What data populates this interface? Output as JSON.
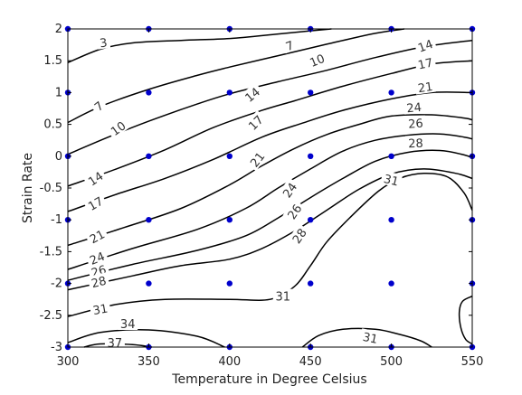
{
  "chart_data": {
    "type": "contour",
    "title": "",
    "xlabel": "Temperature in Degree Celsius",
    "ylabel": "Strain Rate",
    "xlim": [
      300,
      550
    ],
    "ylim": [
      -3,
      2
    ],
    "x_ticks": [
      "300",
      "350",
      "400",
      "450",
      "500",
      "550"
    ],
    "y_ticks": [
      "2",
      "1.5",
      "1",
      "0.5",
      "0",
      "-0.5",
      "-1",
      "-1.5",
      "-2",
      "-2.5",
      "-3"
    ],
    "grid": false,
    "points_x": [
      300,
      350,
      400,
      450,
      500,
      550
    ],
    "points_y": [
      2,
      1,
      0,
      -1,
      -2,
      -3
    ],
    "point_color": "#0000cc",
    "line_color": "#000000",
    "contour_lines": [
      {
        "level": "3",
        "points": [
          [
            300,
            1.47
          ],
          [
            320,
            1.68
          ],
          [
            340,
            1.78
          ],
          [
            370,
            1.82
          ],
          [
            400,
            1.85
          ],
          [
            430,
            1.92
          ],
          [
            450,
            1.97
          ],
          [
            463,
            2.0
          ]
        ]
      },
      {
        "level": "7",
        "points": [
          [
            300,
            0.53
          ],
          [
            320,
            0.78
          ],
          [
            350,
            1.05
          ],
          [
            380,
            1.27
          ],
          [
            400,
            1.4
          ],
          [
            430,
            1.58
          ],
          [
            460,
            1.76
          ],
          [
            490,
            1.93
          ],
          [
            508,
            2.0
          ]
        ]
      },
      {
        "level": "10",
        "points": [
          [
            300,
            0.03
          ],
          [
            325,
            0.3
          ],
          [
            350,
            0.55
          ],
          [
            380,
            0.82
          ],
          [
            400,
            0.98
          ],
          [
            430,
            1.17
          ],
          [
            460,
            1.35
          ],
          [
            490,
            1.55
          ],
          [
            520,
            1.72
          ],
          [
            550,
            1.82
          ]
        ]
      },
      {
        "level": "14",
        "points": [
          [
            300,
            -0.47
          ],
          [
            330,
            -0.2
          ],
          [
            360,
            0.1
          ],
          [
            390,
            0.45
          ],
          [
            420,
            0.72
          ],
          [
            440,
            0.87
          ],
          [
            470,
            1.1
          ],
          [
            500,
            1.3
          ],
          [
            525,
            1.45
          ],
          [
            550,
            1.5
          ]
        ]
      },
      {
        "level": "17",
        "points": [
          [
            300,
            -0.87
          ],
          [
            330,
            -0.6
          ],
          [
            360,
            -0.35
          ],
          [
            390,
            -0.05
          ],
          [
            420,
            0.3
          ],
          [
            445,
            0.52
          ],
          [
            470,
            0.72
          ],
          [
            500,
            0.9
          ],
          [
            525,
            1.0
          ],
          [
            550,
            1.0
          ]
        ]
      },
      {
        "level": "21",
        "points": [
          [
            300,
            -1.4
          ],
          [
            335,
            -1.12
          ],
          [
            370,
            -0.82
          ],
          [
            400,
            -0.45
          ],
          [
            420,
            -0.15
          ],
          [
            440,
            0.12
          ],
          [
            460,
            0.34
          ],
          [
            480,
            0.5
          ],
          [
            500,
            0.63
          ],
          [
            525,
            0.65
          ],
          [
            545,
            0.6
          ],
          [
            550,
            0.57
          ]
        ]
      },
      {
        "level": "24",
        "points": [
          [
            300,
            -1.78
          ],
          [
            340,
            -1.45
          ],
          [
            380,
            -1.15
          ],
          [
            410,
            -0.82
          ],
          [
            430,
            -0.5
          ],
          [
            450,
            -0.2
          ],
          [
            470,
            0.08
          ],
          [
            490,
            0.25
          ],
          [
            510,
            0.33
          ],
          [
            530,
            0.35
          ],
          [
            545,
            0.3
          ],
          [
            550,
            0.27
          ]
        ]
      },
      {
        "level": "26",
        "points": [
          [
            300,
            -1.95
          ],
          [
            340,
            -1.7
          ],
          [
            380,
            -1.48
          ],
          [
            410,
            -1.25
          ],
          [
            430,
            -0.97
          ],
          [
            450,
            -0.65
          ],
          [
            470,
            -0.35
          ],
          [
            490,
            -0.08
          ],
          [
            510,
            0.06
          ],
          [
            530,
            0.09
          ],
          [
            545,
            0.02
          ],
          [
            550,
            -0.03
          ]
        ]
      },
      {
        "level": "28",
        "points": [
          [
            300,
            -2.1
          ],
          [
            340,
            -1.88
          ],
          [
            370,
            -1.72
          ],
          [
            400,
            -1.62
          ],
          [
            420,
            -1.45
          ],
          [
            440,
            -1.18
          ],
          [
            460,
            -0.85
          ],
          [
            480,
            -0.52
          ],
          [
            500,
            -0.28
          ],
          [
            520,
            -0.2
          ],
          [
            540,
            -0.27
          ],
          [
            550,
            -0.35
          ]
        ]
      },
      {
        "level": "31",
        "points": [
          [
            300,
            -2.52
          ],
          [
            330,
            -2.33
          ],
          [
            360,
            -2.25
          ],
          [
            400,
            -2.25
          ],
          [
            425,
            -2.25
          ],
          [
            440,
            -2.05
          ],
          [
            450,
            -1.72
          ],
          [
            460,
            -1.35
          ],
          [
            475,
            -0.95
          ],
          [
            492,
            -0.55
          ],
          [
            505,
            -0.35
          ],
          [
            520,
            -0.27
          ],
          [
            535,
            -0.33
          ],
          [
            545,
            -0.58
          ],
          [
            550,
            -0.85
          ]
        ]
      },
      {
        "level": "31",
        "points": [
          [
            445,
            -3.0
          ],
          [
            455,
            -2.82
          ],
          [
            470,
            -2.72
          ],
          [
            490,
            -2.72
          ],
          [
            505,
            -2.8
          ],
          [
            518,
            -2.9
          ],
          [
            525,
            -3.0
          ]
        ]
      },
      {
        "level": "31",
        "points": [
          [
            550,
            -2.2
          ],
          [
            544,
            -2.28
          ],
          [
            542,
            -2.45
          ],
          [
            543,
            -2.7
          ],
          [
            546,
            -2.88
          ],
          [
            550,
            -2.95
          ]
        ]
      },
      {
        "level": "34",
        "points": [
          [
            300,
            -2.93
          ],
          [
            320,
            -2.77
          ],
          [
            350,
            -2.73
          ],
          [
            380,
            -2.83
          ],
          [
            397,
            -3.0
          ]
        ]
      },
      {
        "level": "37",
        "points": [
          [
            310,
            -3.0
          ],
          [
            320,
            -2.95
          ],
          [
            340,
            -2.96
          ],
          [
            352,
            -3.0
          ]
        ]
      }
    ],
    "contour_labels": [
      {
        "text": "3",
        "x": 322,
        "y": 1.79,
        "angle": -8
      },
      {
        "text": "7",
        "x": 437,
        "y": 1.74,
        "angle": -20
      },
      {
        "text": "10",
        "x": 454,
        "y": 1.51,
        "angle": -22
      },
      {
        "text": "14",
        "x": 521,
        "y": 1.74,
        "angle": -20
      },
      {
        "text": "17",
        "x": 521,
        "y": 1.46,
        "angle": -12
      },
      {
        "text": "21",
        "x": 521,
        "y": 1.09,
        "angle": -8
      },
      {
        "text": "24",
        "x": 514,
        "y": 0.77,
        "angle": -6
      },
      {
        "text": "26",
        "x": 515,
        "y": 0.52,
        "angle": -4
      },
      {
        "text": "28",
        "x": 515,
        "y": 0.21,
        "angle": -2
      },
      {
        "text": "31",
        "x": 500,
        "y": -0.37,
        "angle": 14
      },
      {
        "text": "7",
        "x": 319,
        "y": 0.79,
        "angle": -38
      },
      {
        "text": "10",
        "x": 331,
        "y": 0.44,
        "angle": -36
      },
      {
        "text": "14",
        "x": 317,
        "y": -0.35,
        "angle": -34
      },
      {
        "text": "17",
        "x": 317,
        "y": -0.74,
        "angle": -30
      },
      {
        "text": "21",
        "x": 318,
        "y": -1.26,
        "angle": -28
      },
      {
        "text": "14",
        "x": 414,
        "y": 0.97,
        "angle": -40
      },
      {
        "text": "17",
        "x": 416,
        "y": 0.53,
        "angle": -45
      },
      {
        "text": "21",
        "x": 417,
        "y": -0.05,
        "angle": -52
      },
      {
        "text": "24",
        "x": 437,
        "y": -0.53,
        "angle": -55
      },
      {
        "text": "26",
        "x": 440,
        "y": -0.87,
        "angle": -55
      },
      {
        "text": "28",
        "x": 443,
        "y": -1.25,
        "angle": -55
      },
      {
        "text": "24",
        "x": 318,
        "y": -1.6,
        "angle": -22
      },
      {
        "text": "26",
        "x": 319,
        "y": -1.8,
        "angle": -16
      },
      {
        "text": "28",
        "x": 319,
        "y": -1.97,
        "angle": -14
      },
      {
        "text": "31",
        "x": 320,
        "y": -2.4,
        "angle": -10
      },
      {
        "text": "31",
        "x": 433,
        "y": -2.2,
        "angle": 0
      },
      {
        "text": "31",
        "x": 487,
        "y": -2.85,
        "angle": 12
      },
      {
        "text": "34",
        "x": 337,
        "y": -2.63,
        "angle": 0
      },
      {
        "text": "37",
        "x": 329,
        "y": -2.93,
        "angle": 0
      }
    ]
  }
}
